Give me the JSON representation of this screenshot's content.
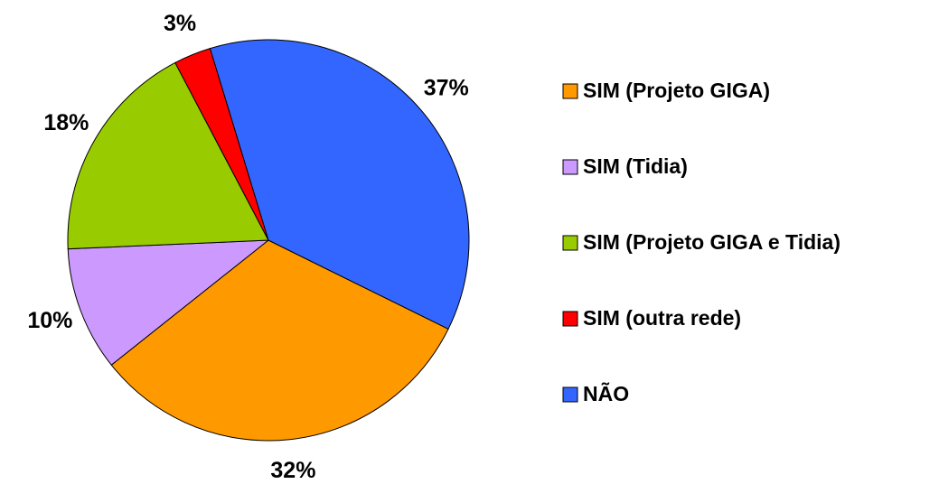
{
  "chart_data": {
    "type": "pie",
    "categories": [
      "SIM (Projeto GIGA)",
      "SIM (Tidia)",
      "SIM (Projeto GIGA e Tidia)",
      "SIM (outra rede)",
      "NÃO"
    ],
    "values": [
      32,
      10,
      18,
      3,
      37
    ],
    "value_labels": [
      "32%",
      "10%",
      "18%",
      "3%",
      "37%"
    ],
    "colors": [
      "#FF9900",
      "#CC99FF",
      "#99CC00",
      "#FF0000",
      "#3366FF"
    ],
    "legend": "right"
  }
}
